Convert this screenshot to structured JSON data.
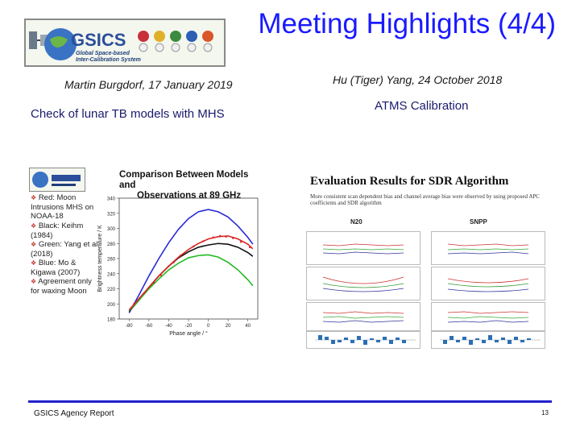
{
  "slide": {
    "title": "Meeting Highlights (4/4)",
    "footer": "GSICS Agency Report",
    "page_number": "13"
  },
  "logo": {
    "acronym": "GSICS",
    "tagline_line1": "Global Space-based",
    "tagline_line2": "Inter-Calibration System"
  },
  "left": {
    "author": "Martin Burgdorf, 17 January 2019",
    "topic": "Check of lunar TB models with MHS",
    "figure": {
      "heading_line1": "Comparison Between Models and",
      "heading_line2": "Observations at 89 GHz",
      "bullets": [
        "Red: Moon Intrusions MHS on NOAA-18",
        "Black: Keihm (1984)",
        "Green: Yang et al. (2018)",
        "Blue: Mo & Kigawa (2007)",
        "Agreement only for waxing Moon"
      ]
    }
  },
  "right": {
    "author": "Hu (Tiger) Yang, 24 October 2018",
    "topic": "ATMS Calibration",
    "figure": {
      "heading": "Evaluation Results for SDR Algorithm",
      "description": "More consistent scan dependent bias and channel average bias were observed by using proposed APC coefficients and SDR algorithm",
      "col_left": "N20",
      "col_right": "SNPP"
    }
  },
  "chart_data": {
    "type": "line",
    "xlabel": "Phase angle / °",
    "ylabel": "Brightness temperature / K",
    "xlim": [
      -90,
      50
    ],
    "ylim": [
      180,
      340
    ],
    "x_ticks": [
      -80,
      -60,
      -40,
      -20,
      0,
      20,
      40
    ],
    "y_ticks": [
      180,
      200,
      220,
      240,
      260,
      280,
      300,
      320,
      340
    ],
    "series": [
      {
        "color": "#2a2ad8",
        "style": "line",
        "x": [
          -80,
          -70,
          -60,
          -50,
          -40,
          -30,
          -20,
          -10,
          0,
          10,
          20,
          30,
          40,
          45
        ],
        "y": [
          188,
          212,
          237,
          260,
          281,
          299,
          313,
          322,
          325,
          322,
          315,
          303,
          288,
          279
        ]
      },
      {
        "color": "#111111",
        "style": "line",
        "x": [
          -80,
          -70,
          -60,
          -50,
          -40,
          -30,
          -20,
          -10,
          0,
          10,
          20,
          30,
          40,
          45
        ],
        "y": [
          190,
          205,
          222,
          237,
          250,
          261,
          269,
          275,
          278,
          280,
          279,
          275,
          268,
          263
        ]
      },
      {
        "color": "#22bb22",
        "style": "line",
        "x": [
          -80,
          -70,
          -60,
          -50,
          -40,
          -30,
          -20,
          -10,
          0,
          10,
          20,
          30,
          40,
          45
        ],
        "y": [
          191,
          205,
          220,
          233,
          245,
          254,
          261,
          264,
          265,
          262,
          255,
          245,
          232,
          224
        ]
      },
      {
        "color": "#dd2222",
        "style": "line",
        "x": [
          -80,
          -70,
          -60,
          -50,
          -40,
          -30,
          -20,
          -10,
          0,
          10,
          20,
          30,
          40,
          45
        ],
        "y": [
          192,
          207,
          222,
          237,
          250,
          262,
          272,
          280,
          286,
          289,
          290,
          286,
          279,
          273
        ]
      },
      {
        "color": "#dd2222",
        "style": "points",
        "x": [
          -75,
          -65,
          -55,
          -48,
          -35,
          -28,
          -15,
          -5,
          5,
          12,
          18,
          25,
          33,
          42
        ],
        "y": [
          200,
          214,
          228,
          238,
          255,
          264,
          276,
          283,
          288,
          290,
          289,
          287,
          282,
          275
        ]
      }
    ]
  }
}
